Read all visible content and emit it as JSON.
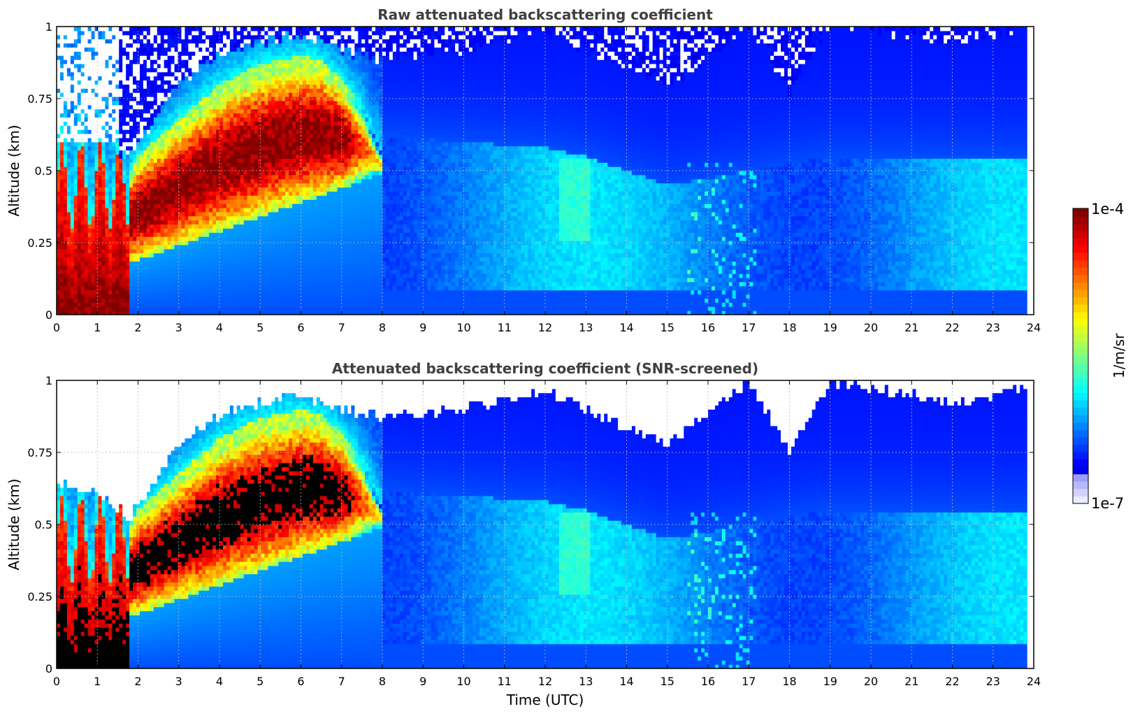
{
  "chart_data": [
    {
      "type": "heatmap",
      "title": "Raw attenuated backscattering coefficient",
      "xlabel": "",
      "ylabel": "Altitude (km)",
      "xlim": [
        0,
        24
      ],
      "ylim": [
        0,
        1
      ],
      "xticks": [
        "0",
        "1",
        "2",
        "3",
        "4",
        "5",
        "6",
        "7",
        "8",
        "9",
        "10",
        "11",
        "12",
        "13",
        "14",
        "15",
        "16",
        "17",
        "18",
        "19",
        "20",
        "21",
        "22",
        "23",
        "24"
      ],
      "yticks": [
        "0",
        "0.25",
        "0.5",
        "0.75",
        "1"
      ],
      "grid": true,
      "color_scale": "log",
      "data_end_time": 23.83,
      "layers": [
        {
          "name": "boundary-layer aerosol (red/dark-red)",
          "x": [
            0,
            0.5,
            1,
            1.5,
            2,
            3,
            4,
            5,
            6,
            6.5,
            7,
            7.5,
            8
          ],
          "top_km": [
            0.45,
            0.42,
            0.4,
            0.42,
            0.55,
            0.68,
            0.8,
            0.87,
            0.9,
            0.88,
            0.82,
            0.72,
            0.55
          ]
        },
        {
          "name": "surface-layer aerosol (high, 0-1.8 UTC)",
          "x": [
            0,
            1.8
          ],
          "top_km": [
            0.45,
            0.2
          ]
        },
        {
          "name": "residual-layer signal (cyan/light-blue)",
          "x": [
            8,
            10,
            12,
            13,
            15,
            17,
            19,
            21,
            23.83
          ],
          "top_km": [
            0.62,
            0.6,
            0.58,
            0.55,
            0.45,
            0.5,
            0.55,
            0.55,
            0.55
          ]
        }
      ]
    },
    {
      "type": "heatmap",
      "title": "Attenuated backscattering coefficient (SNR-screened)",
      "xlabel": "Time (UTC)",
      "ylabel": "Altitude (km)",
      "xlim": [
        0,
        24
      ],
      "ylim": [
        0,
        1
      ],
      "xticks": [
        "0",
        "1",
        "2",
        "3",
        "4",
        "5",
        "6",
        "7",
        "8",
        "9",
        "10",
        "11",
        "12",
        "13",
        "14",
        "15",
        "16",
        "17",
        "18",
        "19",
        "20",
        "21",
        "22",
        "23",
        "24"
      ],
      "yticks": [
        "0",
        "0.25",
        "0.5",
        "0.75",
        "1"
      ],
      "grid": true,
      "color_scale": "log",
      "data_end_time": 23.83,
      "screened_top_km": {
        "x": [
          0,
          1,
          1.8,
          3,
          4,
          5,
          6,
          7,
          8,
          10,
          12,
          13,
          15,
          16,
          17,
          18,
          19,
          21,
          22,
          23.83
        ],
        "y": [
          0.65,
          0.62,
          0.52,
          0.78,
          0.88,
          0.93,
          0.95,
          0.9,
          0.87,
          0.9,
          0.97,
          0.9,
          0.78,
          0.88,
          1.0,
          0.75,
          1.0,
          0.95,
          0.92,
          0.98
        ]
      }
    }
  ],
  "colorbar": {
    "label": "1/m/sr",
    "min_label": "1e-7",
    "max_label": "1e-4",
    "min": 1e-07,
    "max": 0.0001,
    "scale": "log",
    "colormap": "jet"
  }
}
